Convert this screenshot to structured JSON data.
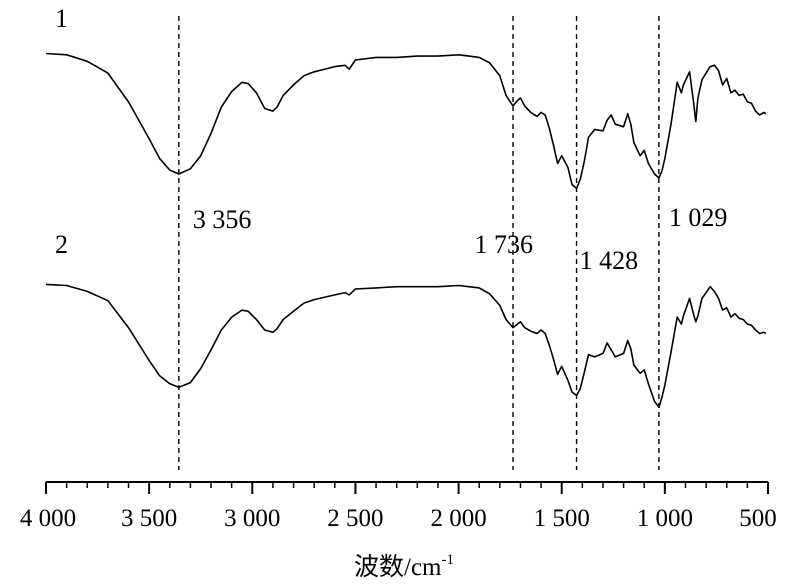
{
  "chart_data": {
    "type": "line",
    "title": "",
    "xlabel": "波数/cm",
    "xlabel_sup": "-1",
    "ylabel": "",
    "xlim": [
      4000,
      500
    ],
    "x_reversed": true,
    "grid": false,
    "ticks": [
      {
        "value": 4000,
        "label": "4 000"
      },
      {
        "value": 3500,
        "label": "3 500"
      },
      {
        "value": 3000,
        "label": "3 000"
      },
      {
        "value": 2500,
        "label": "2 500"
      },
      {
        "value": 2000,
        "label": "2 000"
      },
      {
        "value": 1500,
        "label": "1 500"
      },
      {
        "value": 1000,
        "label": "1 000"
      },
      {
        "value": 500,
        "label": "500"
      }
    ],
    "minor_tick_step": 100,
    "reference_lines": [
      {
        "x": 3356,
        "label": "3 356"
      },
      {
        "x": 1736,
        "label": "1 736"
      },
      {
        "x": 1428,
        "label": "1 428"
      },
      {
        "x": 1029,
        "label": "1 029"
      }
    ],
    "series": [
      {
        "name": "1",
        "y_unit": "relative transmittance (0 = band minimum, 100 = baseline maximum)",
        "points": [
          [
            4000,
            92
          ],
          [
            3900,
            91
          ],
          [
            3800,
            86
          ],
          [
            3700,
            77
          ],
          [
            3600,
            55
          ],
          [
            3500,
            27
          ],
          [
            3450,
            12
          ],
          [
            3400,
            3
          ],
          [
            3356,
            0
          ],
          [
            3300,
            4
          ],
          [
            3250,
            14
          ],
          [
            3200,
            31
          ],
          [
            3150,
            51
          ],
          [
            3100,
            63
          ],
          [
            3050,
            70
          ],
          [
            3020,
            69
          ],
          [
            2980,
            62
          ],
          [
            2940,
            50
          ],
          [
            2900,
            48
          ],
          [
            2880,
            51
          ],
          [
            2850,
            60
          ],
          [
            2800,
            68
          ],
          [
            2750,
            75
          ],
          [
            2700,
            78
          ],
          [
            2600,
            82
          ],
          [
            2550,
            83
          ],
          [
            2530,
            80
          ],
          [
            2500,
            87
          ],
          [
            2400,
            89
          ],
          [
            2300,
            89
          ],
          [
            2200,
            90
          ],
          [
            2100,
            90
          ],
          [
            2000,
            91
          ],
          [
            1950,
            90
          ],
          [
            1900,
            89
          ],
          [
            1850,
            85
          ],
          [
            1800,
            75
          ],
          [
            1770,
            60
          ],
          [
            1736,
            52
          ],
          [
            1715,
            56
          ],
          [
            1700,
            58
          ],
          [
            1680,
            52
          ],
          [
            1650,
            47
          ],
          [
            1620,
            44
          ],
          [
            1600,
            47
          ],
          [
            1580,
            45
          ],
          [
            1560,
            35
          ],
          [
            1540,
            22
          ],
          [
            1520,
            8
          ],
          [
            1500,
            14
          ],
          [
            1470,
            5
          ],
          [
            1450,
            -8
          ],
          [
            1428,
            -11
          ],
          [
            1410,
            -4
          ],
          [
            1390,
            10
          ],
          [
            1370,
            28
          ],
          [
            1340,
            34
          ],
          [
            1300,
            33
          ],
          [
            1280,
            41
          ],
          [
            1260,
            45
          ],
          [
            1240,
            38
          ],
          [
            1200,
            36
          ],
          [
            1180,
            46
          ],
          [
            1165,
            38
          ],
          [
            1150,
            24
          ],
          [
            1120,
            14
          ],
          [
            1100,
            18
          ],
          [
            1080,
            8
          ],
          [
            1050,
            0
          ],
          [
            1029,
            -3
          ],
          [
            1015,
            2
          ],
          [
            1000,
            12
          ],
          [
            970,
            38
          ],
          [
            940,
            70
          ],
          [
            920,
            62
          ],
          [
            910,
            68
          ],
          [
            880,
            78
          ],
          [
            860,
            54
          ],
          [
            850,
            40
          ],
          [
            840,
            58
          ],
          [
            820,
            72
          ],
          [
            780,
            82
          ],
          [
            760,
            83
          ],
          [
            740,
            79
          ],
          [
            720,
            68
          ],
          [
            700,
            73
          ],
          [
            680,
            62
          ],
          [
            660,
            64
          ],
          [
            640,
            60
          ],
          [
            620,
            61
          ],
          [
            600,
            55
          ],
          [
            580,
            54
          ],
          [
            560,
            48
          ],
          [
            540,
            45
          ],
          [
            520,
            47
          ],
          [
            510,
            46
          ]
        ]
      },
      {
        "name": "2",
        "y_unit": "relative transmittance (0 = band minimum, 100 = baseline maximum)",
        "points": [
          [
            4000,
            92
          ],
          [
            3900,
            91
          ],
          [
            3800,
            86
          ],
          [
            3700,
            78
          ],
          [
            3600,
            55
          ],
          [
            3500,
            27
          ],
          [
            3450,
            14
          ],
          [
            3400,
            7
          ],
          [
            3356,
            4
          ],
          [
            3300,
            8
          ],
          [
            3250,
            20
          ],
          [
            3200,
            36
          ],
          [
            3150,
            53
          ],
          [
            3100,
            64
          ],
          [
            3050,
            70
          ],
          [
            3020,
            69
          ],
          [
            2980,
            62
          ],
          [
            2940,
            53
          ],
          [
            2900,
            51
          ],
          [
            2880,
            54
          ],
          [
            2850,
            62
          ],
          [
            2800,
            69
          ],
          [
            2750,
            76
          ],
          [
            2700,
            79
          ],
          [
            2600,
            83
          ],
          [
            2550,
            85
          ],
          [
            2530,
            83
          ],
          [
            2500,
            88
          ],
          [
            2400,
            89
          ],
          [
            2300,
            90
          ],
          [
            2200,
            90
          ],
          [
            2100,
            90
          ],
          [
            2000,
            91
          ],
          [
            1950,
            90
          ],
          [
            1900,
            89
          ],
          [
            1850,
            84
          ],
          [
            1800,
            74
          ],
          [
            1770,
            62
          ],
          [
            1736,
            55
          ],
          [
            1715,
            58
          ],
          [
            1700,
            60
          ],
          [
            1680,
            55
          ],
          [
            1650,
            52
          ],
          [
            1620,
            50
          ],
          [
            1600,
            53
          ],
          [
            1580,
            50
          ],
          [
            1560,
            40
          ],
          [
            1540,
            28
          ],
          [
            1520,
            15
          ],
          [
            1500,
            22
          ],
          [
            1470,
            10
          ],
          [
            1450,
            0
          ],
          [
            1428,
            -3
          ],
          [
            1410,
            3
          ],
          [
            1390,
            17
          ],
          [
            1370,
            32
          ],
          [
            1340,
            30
          ],
          [
            1300,
            33
          ],
          [
            1280,
            42
          ],
          [
            1260,
            36
          ],
          [
            1240,
            30
          ],
          [
            1200,
            33
          ],
          [
            1180,
            44
          ],
          [
            1165,
            37
          ],
          [
            1150,
            23
          ],
          [
            1120,
            16
          ],
          [
            1100,
            19
          ],
          [
            1080,
            7
          ],
          [
            1050,
            -8
          ],
          [
            1029,
            -13
          ],
          [
            1015,
            -5
          ],
          [
            1000,
            6
          ],
          [
            970,
            34
          ],
          [
            940,
            64
          ],
          [
            920,
            58
          ],
          [
            910,
            65
          ],
          [
            880,
            80
          ],
          [
            860,
            66
          ],
          [
            850,
            60
          ],
          [
            840,
            65
          ],
          [
            820,
            80
          ],
          [
            780,
            90
          ],
          [
            760,
            86
          ],
          [
            740,
            80
          ],
          [
            720,
            70
          ],
          [
            700,
            72
          ],
          [
            680,
            64
          ],
          [
            660,
            67
          ],
          [
            640,
            63
          ],
          [
            620,
            62
          ],
          [
            600,
            58
          ],
          [
            580,
            57
          ],
          [
            560,
            53
          ],
          [
            540,
            50
          ],
          [
            520,
            51
          ],
          [
            510,
            50
          ]
        ]
      }
    ]
  }
}
